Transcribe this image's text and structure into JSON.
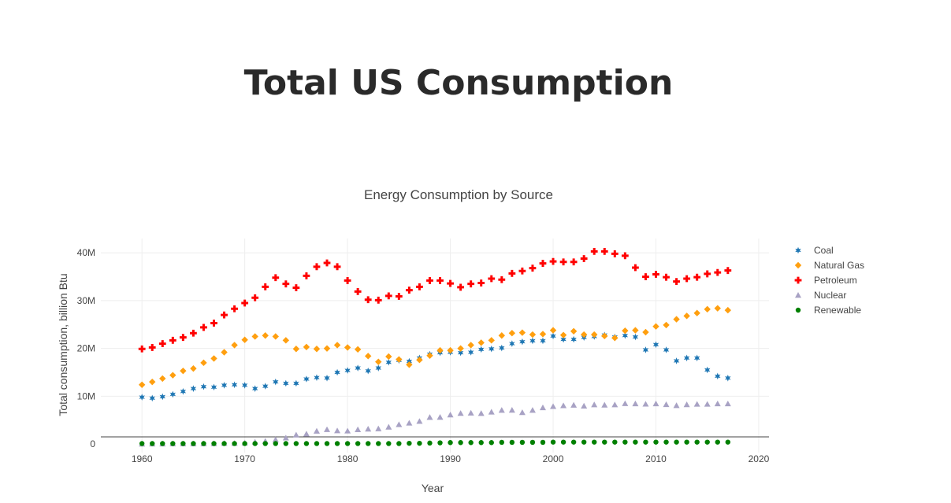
{
  "page": {
    "title": "Total US Consumption"
  },
  "chart_data": {
    "type": "scatter",
    "title": "Energy Consumption by Source",
    "xlabel": "Year",
    "ylabel": "Total consumption, billion Btu",
    "xlim": [
      1956,
      2021
    ],
    "ylim": [
      -1800000,
      43000000
    ],
    "x_ticks": [
      1960,
      1970,
      1980,
      1990,
      2000,
      2010,
      2020
    ],
    "y_ticks": [
      0,
      10000000,
      20000000,
      30000000,
      40000000
    ],
    "y_tick_labels": [
      "0",
      "10M",
      "20M",
      "30M",
      "40M"
    ],
    "grid": true,
    "legend_position": "right",
    "x": [
      1960,
      1961,
      1962,
      1963,
      1964,
      1965,
      1966,
      1967,
      1968,
      1969,
      1970,
      1971,
      1972,
      1973,
      1974,
      1975,
      1976,
      1977,
      1978,
      1979,
      1980,
      1981,
      1982,
      1983,
      1984,
      1985,
      1986,
      1987,
      1988,
      1989,
      1990,
      1991,
      1992,
      1993,
      1994,
      1995,
      1996,
      1997,
      1998,
      1999,
      2000,
      2001,
      2002,
      2003,
      2004,
      2005,
      2006,
      2007,
      2008,
      2009,
      2010,
      2011,
      2012,
      2013,
      2014,
      2015,
      2016,
      2017
    ],
    "series": [
      {
        "name": "Coal",
        "color": "#1f77b4",
        "marker": "star",
        "values": [
          9800000,
          9600000,
          9900000,
          10400000,
          11000000,
          11600000,
          12000000,
          11900000,
          12300000,
          12400000,
          12300000,
          11600000,
          12100000,
          13000000,
          12700000,
          12700000,
          13600000,
          13900000,
          13800000,
          15000000,
          15400000,
          15900000,
          15300000,
          15900000,
          17100000,
          17500000,
          17300000,
          18000000,
          18800000,
          19100000,
          19200000,
          19100000,
          19200000,
          19800000,
          19900000,
          20100000,
          21000000,
          21400000,
          21600000,
          21600000,
          22600000,
          21900000,
          21900000,
          22300000,
          22500000,
          22800000,
          22400000,
          22700000,
          22400000,
          19700000,
          20800000,
          19700000,
          17400000,
          18000000,
          18000000,
          15500000,
          14200000,
          13800000
        ]
      },
      {
        "name": "Natural Gas",
        "color": "#ff9f0f",
        "marker": "diamond",
        "values": [
          12400000,
          13000000,
          13700000,
          14400000,
          15300000,
          15800000,
          17000000,
          17900000,
          19200000,
          20700000,
          21800000,
          22500000,
          22700000,
          22500000,
          21700000,
          19900000,
          20300000,
          19900000,
          20000000,
          20700000,
          20200000,
          19800000,
          18400000,
          17200000,
          18300000,
          17700000,
          16600000,
          17600000,
          18500000,
          19600000,
          19600000,
          20000000,
          20700000,
          21200000,
          21700000,
          22700000,
          23200000,
          23300000,
          22900000,
          23000000,
          23800000,
          22800000,
          23600000,
          22900000,
          22900000,
          22600000,
          22200000,
          23700000,
          23800000,
          23400000,
          24600000,
          24900000,
          26100000,
          26800000,
          27400000,
          28200000,
          28400000,
          28000000
        ]
      },
      {
        "name": "Petroleum",
        "color": "#ff0000",
        "marker": "cross",
        "values": [
          19900000,
          20200000,
          21000000,
          21700000,
          22300000,
          23200000,
          24400000,
          25300000,
          27000000,
          28300000,
          29500000,
          30600000,
          32900000,
          34800000,
          33500000,
          32700000,
          35200000,
          37100000,
          37900000,
          37100000,
          34200000,
          31900000,
          30200000,
          30100000,
          31000000,
          30900000,
          32200000,
          32900000,
          34200000,
          34200000,
          33600000,
          32800000,
          33500000,
          33700000,
          34600000,
          34400000,
          35700000,
          36200000,
          36800000,
          37800000,
          38200000,
          38100000,
          38100000,
          38800000,
          40300000,
          40300000,
          39800000,
          39400000,
          36900000,
          35000000,
          35500000,
          34900000,
          34000000,
          34600000,
          34900000,
          35600000,
          35900000,
          36300000
        ]
      },
      {
        "name": "Nuclear",
        "color": "#a8a2c4",
        "marker": "triangle",
        "values": [
          6000,
          20000,
          26000,
          38000,
          40000,
          43000,
          64000,
          88000,
          142000,
          154000,
          239000,
          413000,
          584000,
          910000,
          1272000,
          1900000,
          2111000,
          2702000,
          3024000,
          2776000,
          2739000,
          3008000,
          3131000,
          3203000,
          3553000,
          4076000,
          4380000,
          4754000,
          5587000,
          5602000,
          6104000,
          6422000,
          6479000,
          6410000,
          6694000,
          7075000,
          7087000,
          6597000,
          7068000,
          7610000,
          7862000,
          8029000,
          8145000,
          7960000,
          8223000,
          8161000,
          8215000,
          8459000,
          8426000,
          8355000,
          8434000,
          8269000,
          8062000,
          8244000,
          8338000,
          8337000,
          8427000,
          8419000
        ]
      },
      {
        "name": "Renewable",
        "color": "#008000",
        "marker": "circle",
        "values": [
          100000,
          100000,
          100000,
          100000,
          100000,
          100000,
          100000,
          100000,
          100000,
          100000,
          100000,
          100000,
          100000,
          100000,
          100000,
          100000,
          100000,
          100000,
          100000,
          100000,
          100000,
          100000,
          100000,
          100000,
          100000,
          100000,
          150000,
          150000,
          200000,
          250000,
          300000,
          300000,
          300000,
          300000,
          300000,
          350000,
          350000,
          350000,
          350000,
          350000,
          400000,
          400000,
          400000,
          400000,
          400000,
          400000,
          400000,
          400000,
          400000,
          400000,
          400000,
          400000,
          400000,
          400000,
          400000,
          400000,
          400000,
          400000
        ]
      }
    ]
  }
}
